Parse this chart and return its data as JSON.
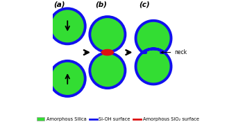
{
  "bg_color": "#ffffff",
  "green_fill": "#33dd33",
  "blue_border": "#1111ee",
  "red_color": "#dd1111",
  "black_color": "#000000",
  "label_a": "(a)",
  "label_b": "(b)",
  "label_c": "(c)",
  "neck_label": "neck",
  "border_lw": 2.8,
  "r": 0.33,
  "legend_items": [
    {
      "label": "Amorphous Silica",
      "color": "#33dd33",
      "type": "patch"
    },
    {
      "label": "Si-OH surface",
      "color": "#1111ee",
      "type": "line"
    },
    {
      "label": "Amorphous SiO₂ surface",
      "color": "#dd1111",
      "type": "line"
    }
  ]
}
